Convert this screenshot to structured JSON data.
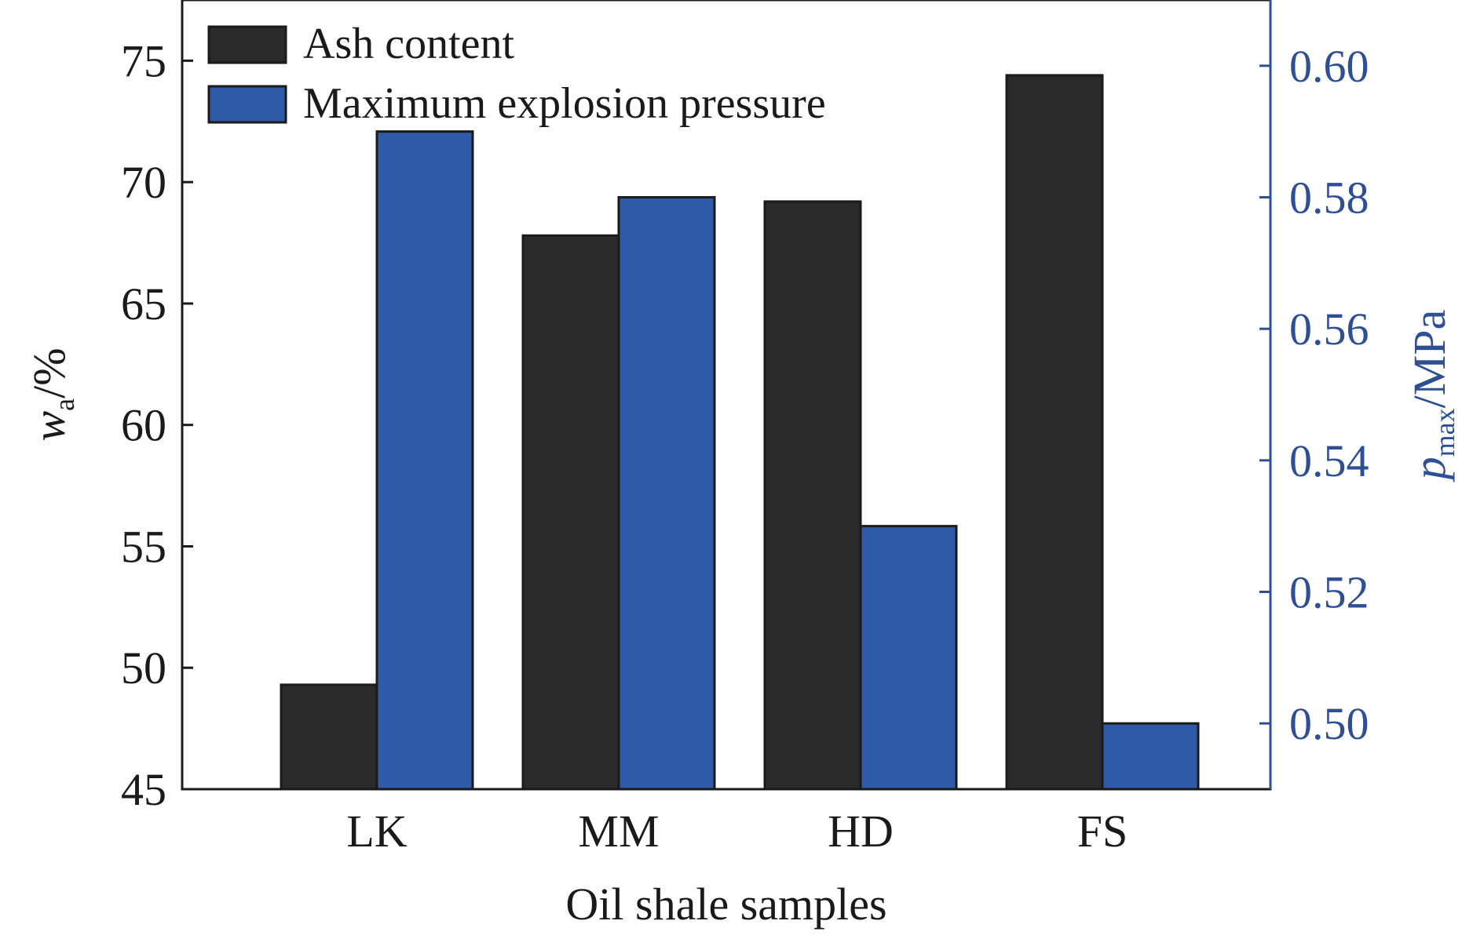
{
  "colors": {
    "ash": "#2a2a2a",
    "pressure": "#2f5aa8",
    "right_axis": "#2f4f95",
    "frame": "#1a1a1a",
    "text": "#1a1a1a"
  },
  "chart_data": {
    "type": "bar",
    "categories": [
      "LK",
      "MM",
      "HD",
      "FS"
    ],
    "series": [
      {
        "name": "Ash content",
        "axis": "left",
        "values": [
          49.3,
          67.8,
          69.2,
          74.4
        ]
      },
      {
        "name": "Maximum explosion pressure",
        "axis": "right",
        "values": [
          0.59,
          0.58,
          0.53,
          0.5
        ]
      }
    ],
    "xlabel": "Oil shale samples",
    "ylabel": {
      "main": "w",
      "sub": "a",
      "tail": "/%"
    },
    "y2label": {
      "main": "p",
      "sub": "max",
      "tail": "/MPa"
    },
    "ylim": [
      45,
      77.5
    ],
    "y2lim": [
      0.49,
      0.61
    ],
    "yticks": [
      45,
      50,
      55,
      60,
      65,
      70,
      75
    ],
    "y2ticks": [
      0.5,
      0.52,
      0.54,
      0.56,
      0.58,
      0.6
    ],
    "legend_position": "top-left",
    "grid": false
  }
}
